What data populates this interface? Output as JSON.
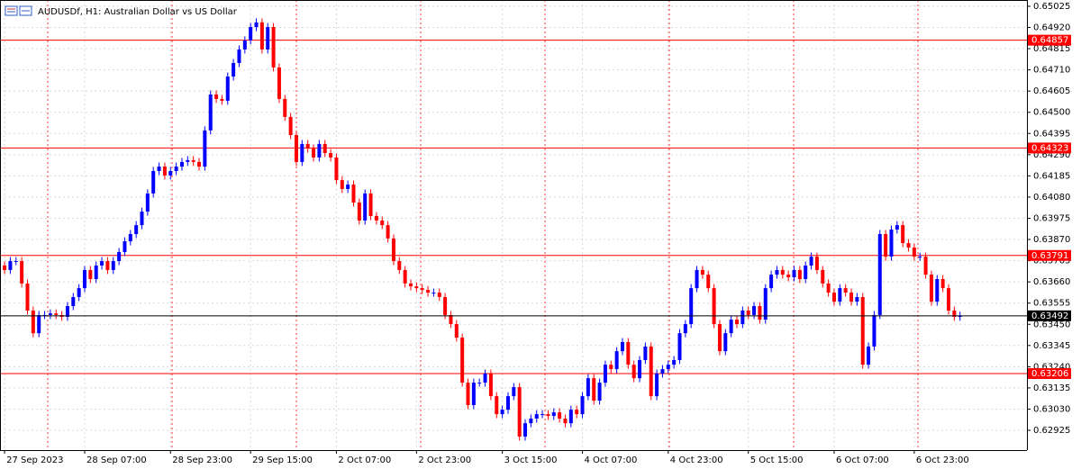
{
  "chart_data": {
    "type": "candlestick",
    "title": "AUDUSDf, H1:  Australian Dollar vs US Dollar",
    "colors": {
      "up": "#0000ff",
      "down": "#ff0000",
      "level": "#ff0000",
      "price": "#000000"
    },
    "open": [
      0.63741,
      0.63719,
      0.63763,
      0.63763,
      0.63652,
      0.63518,
      0.63406,
      0.63496,
      0.63496,
      0.63504,
      0.63496,
      0.63487,
      0.6354,
      0.63585,
      0.63629,
      0.63719,
      0.63674,
      0.63741,
      0.63763,
      0.63719,
      0.63763,
      0.63808,
      0.63861,
      0.63897,
      0.63941,
      0.64008,
      0.64098,
      0.64209,
      0.64231,
      0.64187,
      0.64209,
      0.64231,
      0.64254,
      0.64263,
      0.64254,
      0.64231,
      0.6441,
      0.64588,
      0.64566,
      0.64557,
      0.64677,
      0.64744,
      0.64811,
      0.64856,
      0.64922,
      0.64945,
      0.64811,
      0.64922,
      0.64722,
      0.64566,
      0.64477,
      0.64387,
      0.64254,
      0.64343,
      0.6432,
      0.64276,
      0.64343,
      0.64298,
      0.64276,
      0.64164,
      0.6412,
      0.64142,
      0.64053,
      0.63964,
      0.64098,
      0.63986,
      0.63964,
      0.63941,
      0.63875,
      0.63763,
      0.63719,
      0.63652,
      0.63638,
      0.63629,
      0.6362,
      0.63607,
      0.63607,
      0.63585,
      0.63496,
      0.63451,
      0.63384,
      0.63161,
      0.6305,
      0.63161,
      0.63161,
      0.63206,
      0.63094,
      0.63005,
      0.63027,
      0.63094,
      0.63139,
      0.62894,
      0.6296,
      0.62983,
      0.63005,
      0.63005,
      0.62996,
      0.63014,
      0.62983,
      0.6296,
      0.63027,
      0.63005,
      0.63094,
      0.63183,
      0.63072,
      0.63161,
      0.6325,
      0.63228,
      0.63317,
      0.63362,
      0.6325,
      0.63183,
      0.63273,
      0.6334,
      0.63094,
      0.63206,
      0.63228,
      0.6325,
      0.63273,
      0.63406,
      0.63451,
      0.63629,
      0.63719,
      0.63696,
      0.63629,
      0.63451,
      0.63317,
      0.63406,
      0.63473,
      0.63451,
      0.63518,
      0.63496,
      0.6354,
      0.63473,
      0.63629,
      0.63696,
      0.63719,
      0.63696,
      0.63683,
      0.63719,
      0.63674,
      0.63741,
      0.63785,
      0.63719,
      0.63652,
      0.63607,
      0.63562,
      0.63629,
      0.63607,
      0.63562,
      0.63585,
      0.6325,
      0.6334,
      0.63496,
      0.63897,
      0.63785,
      0.63919,
      0.63941,
      0.63852,
      0.6383,
      0.63785,
      0.63785,
      0.63696,
      0.63562,
      0.63674,
      0.63629,
      0.63518,
      0.63487
    ],
    "high": [
      0.63761,
      0.63783,
      0.63783,
      0.63783,
      0.63672,
      0.63538,
      0.63516,
      0.63516,
      0.63524,
      0.63524,
      0.63516,
      0.6356,
      0.63605,
      0.63649,
      0.63739,
      0.63739,
      0.63761,
      0.63783,
      0.63783,
      0.63783,
      0.63828,
      0.63881,
      0.63917,
      0.63961,
      0.64028,
      0.64118,
      0.64229,
      0.64251,
      0.64251,
      0.64229,
      0.64251,
      0.64274,
      0.64283,
      0.64283,
      0.64274,
      0.6443,
      0.64608,
      0.64608,
      0.64586,
      0.64697,
      0.64764,
      0.64831,
      0.64876,
      0.64942,
      0.64965,
      0.64965,
      0.64942,
      0.64942,
      0.64742,
      0.64586,
      0.64497,
      0.64407,
      0.64363,
      0.64363,
      0.6434,
      0.64363,
      0.64363,
      0.64318,
      0.64296,
      0.64184,
      0.64162,
      0.64162,
      0.64073,
      0.64118,
      0.64118,
      0.64006,
      0.63984,
      0.63961,
      0.63895,
      0.63783,
      0.63739,
      0.63672,
      0.63658,
      0.63649,
      0.6364,
      0.63627,
      0.63627,
      0.63605,
      0.63516,
      0.63471,
      0.63404,
      0.63181,
      0.63181,
      0.63181,
      0.63226,
      0.63226,
      0.63114,
      0.63047,
      0.63114,
      0.63159,
      0.63159,
      0.6298,
      0.63003,
      0.63025,
      0.63025,
      0.63025,
      0.63034,
      0.63034,
      0.63003,
      0.63047,
      0.63047,
      0.63114,
      0.63203,
      0.63203,
      0.63181,
      0.6327,
      0.6327,
      0.63337,
      0.63382,
      0.63382,
      0.6327,
      0.63293,
      0.6336,
      0.6336,
      0.63226,
      0.63248,
      0.6327,
      0.63293,
      0.63426,
      0.63471,
      0.63649,
      0.63739,
      0.63739,
      0.63716,
      0.63649,
      0.63471,
      0.63426,
      0.63493,
      0.63493,
      0.63538,
      0.63538,
      0.6356,
      0.6356,
      0.63649,
      0.63716,
      0.63739,
      0.63739,
      0.63716,
      0.63739,
      0.63739,
      0.63761,
      0.63805,
      0.63805,
      0.63739,
      0.63672,
      0.63627,
      0.63649,
      0.63649,
      0.63627,
      0.63605,
      0.63605,
      0.6336,
      0.63516,
      0.63917,
      0.63917,
      0.63939,
      0.63961,
      0.63961,
      0.63872,
      0.6385,
      0.63805,
      0.63805,
      0.63716,
      0.63694,
      0.63694,
      0.63649,
      0.63538,
      0.63512
    ],
    "low": [
      0.63699,
      0.63699,
      0.63743,
      0.63632,
      0.63498,
      0.63386,
      0.63386,
      0.63476,
      0.63476,
      0.63476,
      0.63467,
      0.63467,
      0.6352,
      0.63565,
      0.63609,
      0.63654,
      0.63654,
      0.63721,
      0.63699,
      0.63699,
      0.63743,
      0.63788,
      0.63841,
      0.63877,
      0.63921,
      0.63988,
      0.64078,
      0.64189,
      0.64167,
      0.64167,
      0.64189,
      0.64211,
      0.64234,
      0.64234,
      0.64211,
      0.64211,
      0.6439,
      0.64546,
      0.64537,
      0.64537,
      0.64657,
      0.64724,
      0.64791,
      0.64836,
      0.64902,
      0.64791,
      0.64791,
      0.64702,
      0.64546,
      0.64457,
      0.64367,
      0.64234,
      0.64234,
      0.643,
      0.64256,
      0.64256,
      0.64278,
      0.64256,
      0.64144,
      0.641,
      0.641,
      0.64033,
      0.63944,
      0.63944,
      0.63966,
      0.63944,
      0.63921,
      0.63855,
      0.63743,
      0.63699,
      0.63632,
      0.63618,
      0.63609,
      0.636,
      0.63587,
      0.63587,
      0.63565,
      0.63476,
      0.63431,
      0.63364,
      0.63141,
      0.6303,
      0.6303,
      0.63141,
      0.63141,
      0.63074,
      0.62985,
      0.62985,
      0.63007,
      0.63074,
      0.62874,
      0.62874,
      0.6294,
      0.62963,
      0.62985,
      0.62976,
      0.62976,
      0.62963,
      0.6294,
      0.6294,
      0.62985,
      0.62985,
      0.63074,
      0.63052,
      0.63052,
      0.63141,
      0.63208,
      0.63208,
      0.63297,
      0.6323,
      0.63163,
      0.63163,
      0.63253,
      0.63074,
      0.63074,
      0.63186,
      0.63208,
      0.6323,
      0.63253,
      0.63386,
      0.63431,
      0.63609,
      0.63676,
      0.63609,
      0.63431,
      0.63297,
      0.63297,
      0.63386,
      0.63431,
      0.63431,
      0.63476,
      0.63476,
      0.63453,
      0.63453,
      0.63609,
      0.63676,
      0.63676,
      0.63663,
      0.63663,
      0.63654,
      0.63654,
      0.63721,
      0.63699,
      0.63632,
      0.63587,
      0.63542,
      0.63542,
      0.63587,
      0.63542,
      0.63542,
      0.6323,
      0.6323,
      0.6332,
      0.63476,
      0.63765,
      0.63765,
      0.63899,
      0.63832,
      0.6381,
      0.63765,
      0.63765,
      0.63676,
      0.63542,
      0.63542,
      0.63609,
      0.63498,
      0.63467,
      0.63467
    ],
    "close": [
      0.63719,
      0.63763,
      0.63763,
      0.63652,
      0.63518,
      0.63406,
      0.63496,
      0.63496,
      0.63504,
      0.63496,
      0.63487,
      0.6354,
      0.63585,
      0.63629,
      0.63719,
      0.63674,
      0.63741,
      0.63763,
      0.63719,
      0.63763,
      0.63808,
      0.63861,
      0.63897,
      0.63941,
      0.64008,
      0.64098,
      0.64209,
      0.64231,
      0.64187,
      0.64209,
      0.64231,
      0.64254,
      0.64263,
      0.64254,
      0.64231,
      0.6441,
      0.64588,
      0.64566,
      0.64557,
      0.64677,
      0.64744,
      0.64811,
      0.64856,
      0.64922,
      0.64945,
      0.64811,
      0.64922,
      0.64722,
      0.64566,
      0.64477,
      0.64387,
      0.64254,
      0.64343,
      0.6432,
      0.64276,
      0.64343,
      0.64298,
      0.64276,
      0.64164,
      0.6412,
      0.64142,
      0.64053,
      0.63964,
      0.64098,
      0.63986,
      0.63964,
      0.63941,
      0.63875,
      0.63763,
      0.63719,
      0.63652,
      0.63638,
      0.63629,
      0.6362,
      0.63607,
      0.63607,
      0.63585,
      0.63496,
      0.63451,
      0.63384,
      0.63161,
      0.6305,
      0.63161,
      0.63161,
      0.63206,
      0.63094,
      0.63005,
      0.63027,
      0.63094,
      0.63139,
      0.62894,
      0.6296,
      0.62983,
      0.63005,
      0.63005,
      0.62996,
      0.63014,
      0.62983,
      0.6296,
      0.63027,
      0.63005,
      0.63094,
      0.63183,
      0.63072,
      0.63161,
      0.6325,
      0.63228,
      0.63317,
      0.63362,
      0.6325,
      0.63183,
      0.63273,
      0.6334,
      0.63094,
      0.63206,
      0.63228,
      0.6325,
      0.63273,
      0.63406,
      0.63451,
      0.63629,
      0.63719,
      0.63696,
      0.63629,
      0.63451,
      0.63317,
      0.63406,
      0.63473,
      0.63451,
      0.63518,
      0.63496,
      0.6354,
      0.63473,
      0.63629,
      0.63696,
      0.63719,
      0.63696,
      0.63683,
      0.63719,
      0.63674,
      0.63741,
      0.63785,
      0.63719,
      0.63652,
      0.63607,
      0.63562,
      0.63629,
      0.63607,
      0.63562,
      0.63585,
      0.6325,
      0.6334,
      0.63496,
      0.63897,
      0.63785,
      0.63919,
      0.63941,
      0.63852,
      0.6383,
      0.63785,
      0.63785,
      0.63696,
      0.63562,
      0.63674,
      0.63629,
      0.63518,
      0.63487,
      0.63492
    ],
    "xlim": [
      -0.8,
      178.7
    ],
    "xticks": [
      {
        "value": 0,
        "label": "27 Sep 2023"
      },
      {
        "value": 14,
        "label": "28 Sep 07:00"
      },
      {
        "value": 29,
        "label": "28 Sep 23:00"
      },
      {
        "value": 43,
        "label": "29 Sep 15:00"
      },
      {
        "value": 58,
        "label": "2 Oct 07:00"
      },
      {
        "value": 72,
        "label": "2 Oct 23:00"
      },
      {
        "value": 87,
        "label": "3 Oct 15:00"
      },
      {
        "value": 101,
        "label": "4 Oct 07:00"
      },
      {
        "value": 116,
        "label": "4 Oct 23:00"
      },
      {
        "value": 130,
        "label": "5 Oct 15:00"
      },
      {
        "value": 145,
        "label": "6 Oct 07:00"
      },
      {
        "value": 159,
        "label": "6 Oct 23:00"
      }
    ],
    "ylim": [
      0.62827,
      0.65056
    ],
    "yticks": [
      {
        "value": 0.65025,
        "label": "0.65025"
      },
      {
        "value": 0.6492,
        "label": "0.64920"
      },
      {
        "value": 0.64815,
        "label": "0.64815"
      },
      {
        "value": 0.6471,
        "label": "0.64710"
      },
      {
        "value": 0.64605,
        "label": "0.64605"
      },
      {
        "value": 0.645,
        "label": "0.64500"
      },
      {
        "value": 0.64395,
        "label": "0.64395"
      },
      {
        "value": 0.6429,
        "label": "0.64290"
      },
      {
        "value": 0.64185,
        "label": "0.64185"
      },
      {
        "value": 0.6408,
        "label": "0.64080"
      },
      {
        "value": 0.63975,
        "label": "0.63975"
      },
      {
        "value": 0.6387,
        "label": "0.63870"
      },
      {
        "value": 0.63765,
        "label": "0.63765"
      },
      {
        "value": 0.6366,
        "label": "0.63660"
      },
      {
        "value": 0.63555,
        "label": "0.63555"
      },
      {
        "value": 0.6345,
        "label": "0.63450"
      },
      {
        "value": 0.63345,
        "label": "0.63345"
      },
      {
        "value": 0.6324,
        "label": "0.63240"
      },
      {
        "value": 0.63135,
        "label": "0.63135"
      },
      {
        "value": 0.6303,
        "label": "0.63030"
      },
      {
        "value": 0.62925,
        "label": "0.62925"
      }
    ],
    "levels": [
      {
        "value": 0.64857,
        "label": "0.64857"
      },
      {
        "value": 0.64323,
        "label": "0.64323"
      },
      {
        "value": 0.63791,
        "label": "0.63791"
      },
      {
        "value": 0.63206,
        "label": "0.63206"
      }
    ],
    "price": {
      "value": 0.63492,
      "label": "0.63492"
    },
    "grid": true
  }
}
